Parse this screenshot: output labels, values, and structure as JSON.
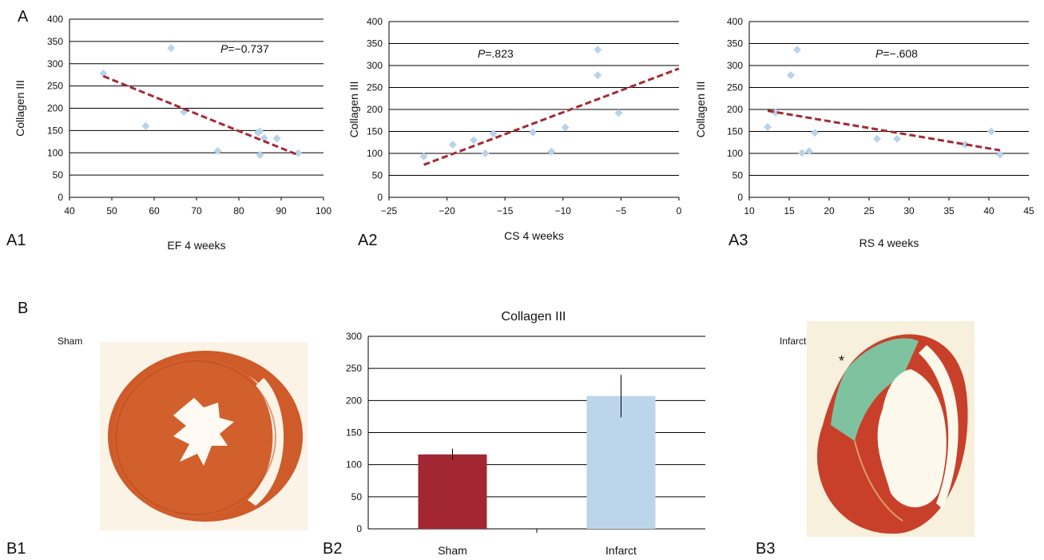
{
  "panels": {
    "A": "A",
    "A1": "A1",
    "A2": "A2",
    "A3": "A3",
    "B": "B",
    "B1": "B1",
    "B2": "B2",
    "B3": "B3"
  },
  "photos": {
    "sham_label": "Sham",
    "infarct_label": "Infarct",
    "asterisk": "*"
  },
  "colors": {
    "points": "#b8d3ea",
    "trend": "#a32a33",
    "bar_sham": "#a32733",
    "bar_infarct": "#bcd5ea"
  },
  "chart_data": [
    {
      "id": "A1",
      "type": "scatter",
      "xlabel": "EF 4 weeks",
      "ylabel": "Collagen III",
      "annotation_italic": "P",
      "annotation_rest": "=−0.737",
      "xlim": [
        40,
        100
      ],
      "ylim": [
        0,
        400
      ],
      "xticks": [
        40,
        50,
        60,
        70,
        80,
        90,
        100
      ],
      "xtick_labels": [
        "40",
        "50",
        "60",
        "70",
        "80",
        "90",
        "100"
      ],
      "yticks": [
        0,
        50,
        100,
        150,
        200,
        250,
        300,
        350,
        400
      ],
      "grid": true,
      "points": [
        [
          48,
          278
        ],
        [
          58,
          160
        ],
        [
          64,
          335
        ],
        [
          67,
          192
        ],
        [
          75,
          104
        ],
        [
          85,
          95
        ],
        [
          85,
          148
        ],
        [
          86,
          133
        ],
        [
          84.5,
          145
        ],
        [
          89,
          132
        ],
        [
          94,
          99
        ]
      ],
      "trendline": [
        [
          48,
          272
        ],
        [
          94,
          95
        ]
      ]
    },
    {
      "id": "A2",
      "type": "scatter",
      "xlabel": "CS 4 weeks",
      "ylabel": "Collagen III",
      "annotation_italic": "P",
      "annotation_rest": "=.823",
      "xlim": [
        -25,
        0
      ],
      "ylim": [
        0,
        400
      ],
      "xticks": [
        -25,
        -20,
        -15,
        -10,
        -5,
        0
      ],
      "xtick_labels": [
        "−25",
        "−20",
        "−15",
        "−10",
        "−5",
        "0"
      ],
      "yticks": [
        0,
        50,
        100,
        150,
        200,
        250,
        300,
        350,
        400
      ],
      "grid": true,
      "points": [
        [
          -22,
          93
        ],
        [
          -19.5,
          120
        ],
        [
          -17.7,
          130
        ],
        [
          -16.7,
          100
        ],
        [
          -16,
          145
        ],
        [
          -12.6,
          148
        ],
        [
          -11,
          104
        ],
        [
          -9.8,
          159
        ],
        [
          -7,
          336
        ],
        [
          -7,
          278
        ],
        [
          -5.2,
          192
        ]
      ],
      "trendline": [
        [
          -22,
          74
        ],
        [
          0,
          293
        ]
      ]
    },
    {
      "id": "A3",
      "type": "scatter",
      "xlabel": "RS 4 weeks",
      "ylabel": "Collagen III",
      "annotation_italic": "P",
      "annotation_rest": "=−.608",
      "xlim": [
        10,
        45
      ],
      "ylim": [
        0,
        400
      ],
      "xticks": [
        10,
        15,
        20,
        25,
        30,
        35,
        40,
        45
      ],
      "xtick_labels": [
        "10",
        "15",
        "20",
        "25",
        "30",
        "35",
        "40",
        "45"
      ],
      "yticks": [
        0,
        50,
        100,
        150,
        200,
        250,
        300,
        350,
        400
      ],
      "grid": true,
      "points": [
        [
          12.3,
          160
        ],
        [
          13.3,
          193
        ],
        [
          15.2,
          278
        ],
        [
          16,
          336
        ],
        [
          16.6,
          101
        ],
        [
          17.5,
          105
        ],
        [
          18.2,
          147
        ],
        [
          26,
          133
        ],
        [
          28.5,
          133
        ],
        [
          37,
          120
        ],
        [
          40.3,
          150
        ],
        [
          41.4,
          97
        ]
      ],
      "trendline": [
        [
          12.3,
          197
        ],
        [
          41.4,
          107
        ]
      ]
    },
    {
      "id": "B2",
      "type": "bar",
      "title": "Collagen III",
      "categories": [
        "Sham",
        "Infarct"
      ],
      "values": [
        116,
        207
      ],
      "errors": [
        [
          107,
          125
        ],
        [
          174,
          240
        ]
      ],
      "ylim": [
        0,
        300
      ],
      "yticks": [
        0,
        50,
        100,
        150,
        200,
        250,
        300
      ],
      "grid": true
    }
  ]
}
